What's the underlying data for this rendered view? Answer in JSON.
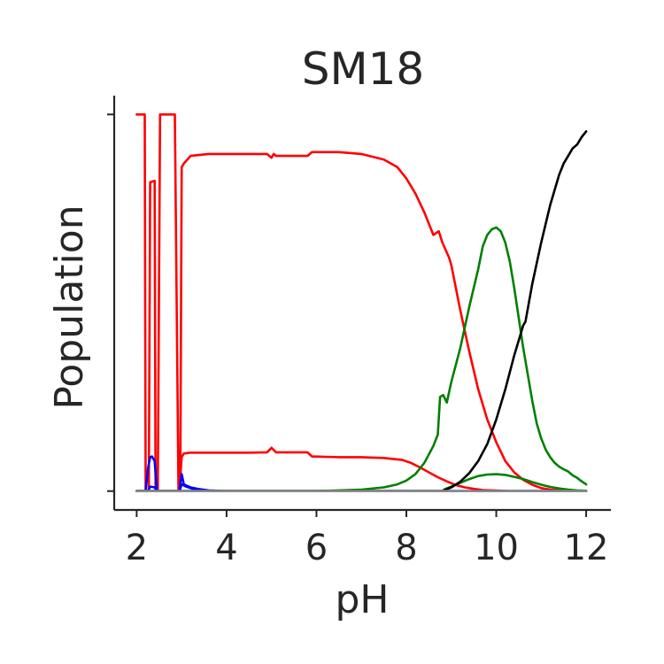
{
  "chart_data": {
    "type": "line",
    "title": "SM18",
    "xlabel": "pH",
    "ylabel": "Population",
    "xlim": [
      1.5,
      12.55
    ],
    "ylim": [
      -0.05,
      1.05
    ],
    "xticks": [
      2,
      4,
      6,
      8,
      10,
      12
    ],
    "yticks": [
      0,
      1
    ],
    "grid": false,
    "series": [
      {
        "color": "#ff0000",
        "x": [
          2.0,
          2.18,
          2.2,
          2.24,
          2.27,
          2.3,
          2.4,
          2.42,
          2.47,
          2.52,
          2.55,
          2.82,
          2.85,
          2.93,
          2.97,
          3.0,
          3.05,
          3.2,
          3.6,
          4.0,
          4.5,
          4.9,
          5.0,
          5.05,
          5.1,
          5.2,
          5.5,
          5.8,
          5.9,
          6.0,
          6.5,
          7.0,
          7.5,
          7.8,
          8.0,
          8.2,
          8.4,
          8.6,
          8.72,
          8.8,
          8.95,
          9.0,
          9.2,
          9.4,
          9.6,
          9.8,
          10.0,
          10.2,
          10.4,
          10.6,
          10.8,
          11.0,
          11.2,
          11.4,
          11.6,
          11.8,
          12.0
        ],
        "y": [
          1.0,
          1.0,
          0.0,
          0.0,
          0.0,
          0.82,
          0.824,
          0.0,
          0.0,
          1.0,
          1.0,
          1.0,
          1.0,
          0.0,
          0.0,
          0.86,
          0.87,
          0.89,
          0.895,
          0.895,
          0.895,
          0.895,
          0.885,
          0.895,
          0.89,
          0.89,
          0.89,
          0.89,
          0.9,
          0.9,
          0.9,
          0.895,
          0.88,
          0.86,
          0.83,
          0.79,
          0.74,
          0.68,
          0.69,
          0.66,
          0.62,
          0.6,
          0.48,
          0.37,
          0.27,
          0.19,
          0.13,
          0.08,
          0.05,
          0.03,
          0.017,
          0.008,
          0.004,
          0.002,
          0.001,
          0.0,
          0.0
        ]
      },
      {
        "color": "#ff0000",
        "x": [
          2.0,
          2.2,
          2.25,
          2.3,
          2.45,
          2.5,
          2.88,
          2.95,
          3.0,
          3.05,
          3.2,
          3.6,
          4.0,
          4.5,
          4.9,
          5.0,
          5.1,
          5.2,
          5.8,
          5.9,
          6.5,
          7.0,
          7.5,
          7.9,
          8.1,
          8.3,
          8.5,
          8.7,
          8.9,
          9.1,
          9.3,
          9.5,
          9.7,
          9.9,
          10.1,
          10.3,
          10.5,
          10.7,
          11.0,
          11.5,
          12.0
        ],
        "y": [
          0.0,
          0.0,
          0.0,
          0.0,
          0.0,
          0.0,
          0.0,
          0.0,
          0.09,
          0.1,
          0.102,
          0.102,
          0.102,
          0.102,
          0.103,
          0.115,
          0.103,
          0.103,
          0.103,
          0.092,
          0.09,
          0.09,
          0.088,
          0.083,
          0.075,
          0.063,
          0.05,
          0.037,
          0.026,
          0.016,
          0.01,
          0.006,
          0.003,
          0.002,
          0.001,
          0.0,
          0.0,
          0.0,
          0.0,
          0.0,
          0.0
        ]
      },
      {
        "color": "#0000ff",
        "x": [
          2.0,
          2.2,
          2.25,
          2.3,
          2.34,
          2.4,
          2.45,
          2.5,
          2.9,
          2.95,
          3.0,
          3.05,
          3.1,
          3.2,
          3.4,
          3.6,
          4.0,
          12.0
        ],
        "y": [
          0.0,
          0.0,
          0.06,
          0.09,
          0.092,
          0.08,
          0.0,
          0.0,
          0.0,
          0.0,
          0.045,
          0.018,
          0.015,
          0.01,
          0.005,
          0.002,
          0.0,
          0.0
        ]
      },
      {
        "color": "#0000ff",
        "x": [
          2.0,
          2.25,
          2.3,
          2.4,
          2.45,
          2.5,
          2.9,
          2.95,
          3.0,
          3.1,
          3.3,
          3.6,
          12.0
        ],
        "y": [
          0.0,
          0.0,
          0.012,
          0.01,
          0.0,
          0.0,
          0.0,
          0.0,
          0.018,
          0.012,
          0.004,
          0.0,
          0.0
        ]
      },
      {
        "color": "#008000",
        "x": [
          2.0,
          6.0,
          6.5,
          7.0,
          7.5,
          7.8,
          8.0,
          8.2,
          8.4,
          8.6,
          8.7,
          8.75,
          8.82,
          8.9,
          9.0,
          9.2,
          9.4,
          9.6,
          9.7,
          9.8,
          9.9,
          10.0,
          10.1,
          10.2,
          10.3,
          10.4,
          10.5,
          10.6,
          10.7,
          10.8,
          10.9,
          11.0,
          11.1,
          11.2,
          11.3,
          11.4,
          11.5,
          11.6,
          11.7,
          11.8,
          11.9,
          12.0
        ],
        "y": [
          0.0,
          0.0,
          0.002,
          0.004,
          0.01,
          0.018,
          0.028,
          0.045,
          0.075,
          0.12,
          0.15,
          0.25,
          0.255,
          0.235,
          0.29,
          0.38,
          0.49,
          0.59,
          0.65,
          0.68,
          0.695,
          0.7,
          0.69,
          0.66,
          0.61,
          0.54,
          0.46,
          0.38,
          0.31,
          0.24,
          0.18,
          0.14,
          0.11,
          0.09,
          0.075,
          0.065,
          0.058,
          0.052,
          0.042,
          0.035,
          0.026,
          0.018
        ]
      },
      {
        "color": "#008000",
        "x": [
          2.0,
          8.8,
          8.85,
          9.0,
          9.2,
          9.4,
          9.6,
          9.8,
          10.0,
          10.2,
          10.4,
          10.6,
          10.8,
          11.0,
          11.2,
          11.4,
          11.6,
          11.8,
          12.0
        ],
        "y": [
          0.0,
          0.0,
          0.005,
          0.012,
          0.022,
          0.032,
          0.04,
          0.044,
          0.045,
          0.043,
          0.038,
          0.032,
          0.024,
          0.017,
          0.011,
          0.007,
          0.004,
          0.002,
          0.001
        ]
      },
      {
        "color": "#000000",
        "x": [
          2.0,
          8.8,
          8.9,
          9.0,
          9.2,
          9.4,
          9.6,
          9.8,
          10.0,
          10.2,
          10.4,
          10.6,
          10.65,
          10.8,
          11.0,
          11.2,
          11.4,
          11.5,
          11.6,
          11.7,
          11.8,
          11.9,
          12.0
        ],
        "y": [
          0.0,
          0.0,
          0.005,
          0.01,
          0.025,
          0.048,
          0.08,
          0.125,
          0.19,
          0.27,
          0.36,
          0.44,
          0.45,
          0.55,
          0.66,
          0.76,
          0.84,
          0.87,
          0.89,
          0.91,
          0.92,
          0.94,
          0.955
        ]
      },
      {
        "color": "#8c8c8c",
        "x": [
          2.0,
          12.0
        ],
        "y": [
          0.0,
          0.0
        ]
      }
    ]
  }
}
